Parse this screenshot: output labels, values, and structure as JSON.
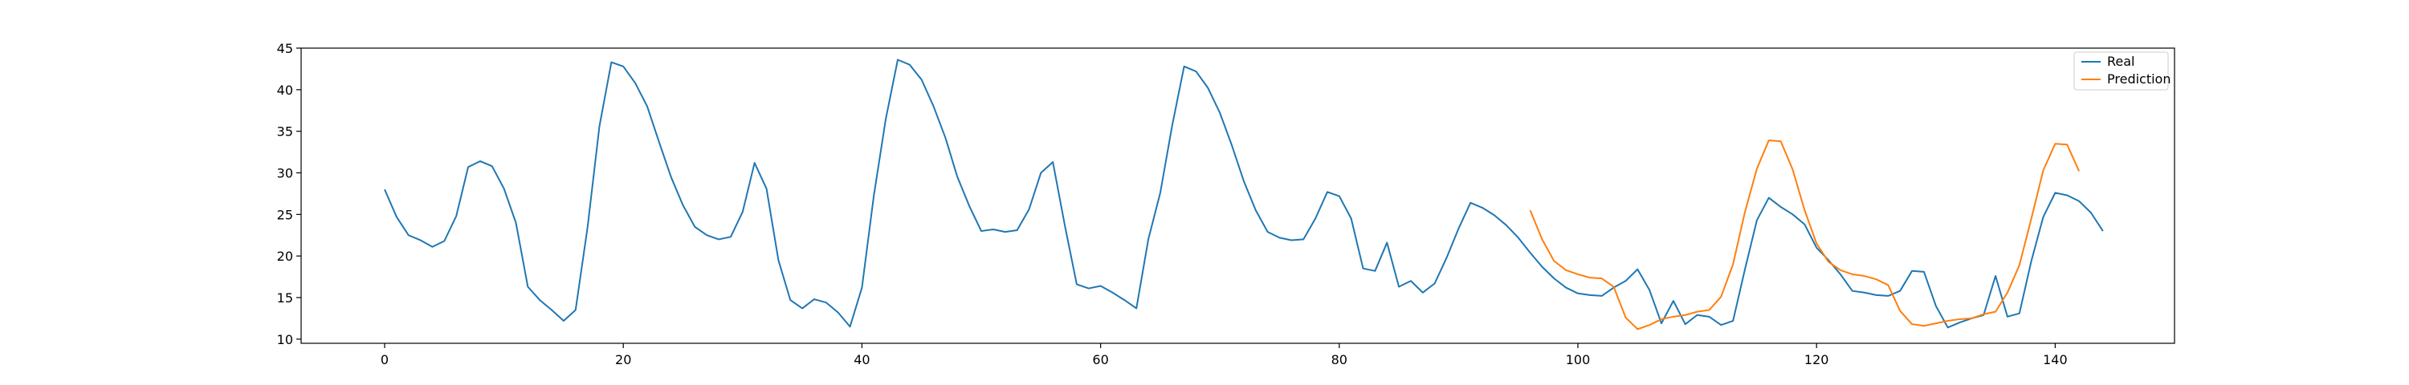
{
  "chart_data": {
    "type": "line",
    "title": "",
    "xlabel": "",
    "ylabel": "",
    "xlim": [
      -7,
      150
    ],
    "ylim": [
      9.5,
      45
    ],
    "xticks": [
      0,
      20,
      40,
      60,
      80,
      100,
      120,
      140
    ],
    "yticks": [
      10,
      15,
      20,
      25,
      30,
      35,
      40,
      45
    ],
    "xtick_labels": [
      "0",
      "20",
      "40",
      "60",
      "80",
      "100",
      "120",
      "140"
    ],
    "ytick_labels": [
      "10",
      "15",
      "20",
      "25",
      "30",
      "35",
      "40",
      "45"
    ],
    "grid": false,
    "legend_position": "top-right",
    "series": [
      {
        "name": "Real",
        "color": "#1f77b4",
        "x_start": 0,
        "values": [
          28.0,
          24.7,
          22.5,
          21.9,
          21.1,
          21.8,
          24.8,
          30.7,
          31.4,
          30.8,
          28.1,
          24.0,
          16.3,
          14.7,
          13.5,
          12.2,
          13.5,
          23.4,
          35.6,
          43.3,
          42.8,
          40.8,
          38.0,
          33.7,
          29.5,
          26.1,
          23.5,
          22.5,
          22.0,
          22.3,
          25.3,
          31.2,
          28.1,
          19.5,
          14.7,
          13.7,
          14.8,
          14.4,
          13.2,
          11.5,
          16.2,
          27.3,
          36.5,
          43.6,
          43.0,
          41.2,
          38.0,
          34.2,
          29.5,
          26.0,
          23.0,
          23.2,
          22.9,
          23.1,
          25.6,
          30.0,
          31.3,
          23.7,
          16.6,
          16.1,
          16.4,
          15.6,
          14.7,
          13.7,
          22.0,
          27.6,
          35.7,
          42.8,
          42.2,
          40.2,
          37.2,
          33.3,
          29.0,
          25.5,
          22.9,
          22.2,
          21.9,
          22.0,
          24.5,
          27.7,
          27.2,
          24.5,
          18.5,
          18.2,
          21.6,
          16.3,
          17.0,
          15.6,
          16.7,
          19.8,
          23.3,
          26.4,
          25.8,
          24.9,
          23.7,
          22.2,
          20.4,
          18.7,
          17.3,
          16.2,
          15.5,
          15.3,
          15.2,
          16.2,
          17.0,
          18.4,
          15.9,
          11.9,
          14.6,
          11.8,
          12.9,
          12.7,
          11.7,
          12.2,
          18.4,
          24.3,
          27.0,
          25.9,
          25.0,
          23.8,
          21.0,
          19.5,
          17.8,
          15.8,
          15.6,
          15.3,
          15.2,
          15.8,
          18.2,
          18.1,
          14.0,
          11.4,
          12.0,
          12.5,
          12.9,
          17.6,
          12.7,
          13.1,
          19.4,
          24.7,
          27.6,
          27.3,
          26.6,
          25.2,
          23.0
        ]
      },
      {
        "name": "Prediction",
        "color": "#ff7f0e",
        "x_start": 96,
        "values": [
          25.5,
          22.0,
          19.4,
          18.3,
          17.8,
          17.4,
          17.3,
          16.3,
          12.6,
          11.2,
          11.7,
          12.4,
          12.7,
          12.9,
          13.3,
          13.5,
          15.1,
          19.0,
          25.3,
          30.5,
          33.9,
          33.8,
          30.4,
          25.5,
          21.5,
          19.3,
          18.3,
          17.8,
          17.6,
          17.2,
          16.5,
          13.4,
          11.8,
          11.6,
          11.9,
          12.2,
          12.4,
          12.5,
          13.0,
          13.3,
          15.6,
          18.9,
          24.5,
          30.3,
          33.5,
          33.4,
          30.2
        ]
      }
    ]
  }
}
